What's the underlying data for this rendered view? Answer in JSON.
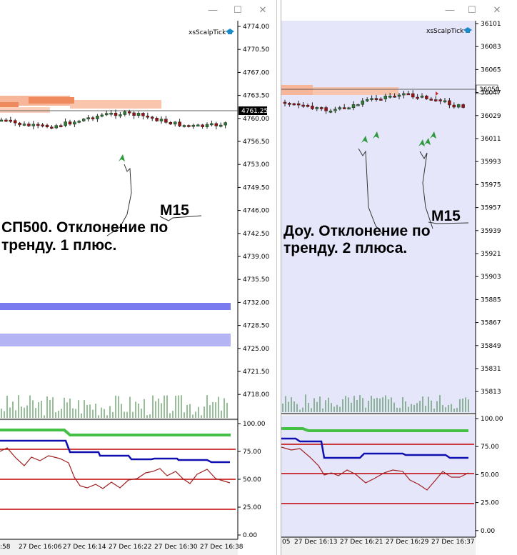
{
  "left_window": {
    "indicator_name": "xsScalpTick",
    "annotation_timeframe": "M15",
    "annotation_line1": "СП500. Отклонение по",
    "annotation_line2": "тренду. 1 плюс.",
    "current_price": "4761.25",
    "price_scale": [
      "4774.00",
      "4770.50",
      "4767.00",
      "4763.50",
      "4760.00",
      "4756.50",
      "4753.00",
      "4749.50",
      "4746.00",
      "4742.50",
      "4739.00",
      "4735.50",
      "4732.00",
      "4728.50",
      "4725.00",
      "4721.50",
      "4718.00"
    ],
    "indicator_scale": [
      "100.00",
      "75.00",
      "50.00",
      "25.00",
      "0.00"
    ],
    "time_labels": [
      ":58",
      "27 Dec 16:06",
      "27 Dec 16:14",
      "27 Dec 16:22",
      "27 Dec 16:30",
      "27 Dec 16:38"
    ]
  },
  "right_window": {
    "indicator_name": "xsScalpTick",
    "annotation_timeframe": "M15",
    "annotation_line1": "Доу. Отклонение по",
    "annotation_line2": "тренду. 2 плюса.",
    "current_price": "36050",
    "price_scale": [
      "36101",
      "36083",
      "36065",
      "36047",
      "36029",
      "36011",
      "35993",
      "35975",
      "35957",
      "35939",
      "35921",
      "35903",
      "35885",
      "35867",
      "35849",
      "35831",
      "35813"
    ],
    "indicator_scale": [
      "100.00",
      "75.00",
      "50.00",
      "25.00",
      "0.00"
    ],
    "time_labels": [
      "05",
      "27 Dec 16:13",
      "27 Dec 16:21",
      "27 Dec 16:29",
      "27 Dec 16:37"
    ]
  },
  "window_controls": {
    "minimize": "—",
    "maximize": "☐",
    "close": "✕"
  },
  "colors": {
    "bull": "#2e7d32",
    "bear": "#a01010",
    "zone_fill": "#f7b59a",
    "zone_dark": "#ef8a5e",
    "level_blue": "#7b7bf0",
    "level_blue_light": "#b4b4f5",
    "green_line": "#44c044",
    "blue_line": "#1010b0",
    "red_line": "#a02020",
    "red_level": "#c00000",
    "right_bg": "#e6e6fa",
    "arrow_green": "#2e9a3e"
  }
}
